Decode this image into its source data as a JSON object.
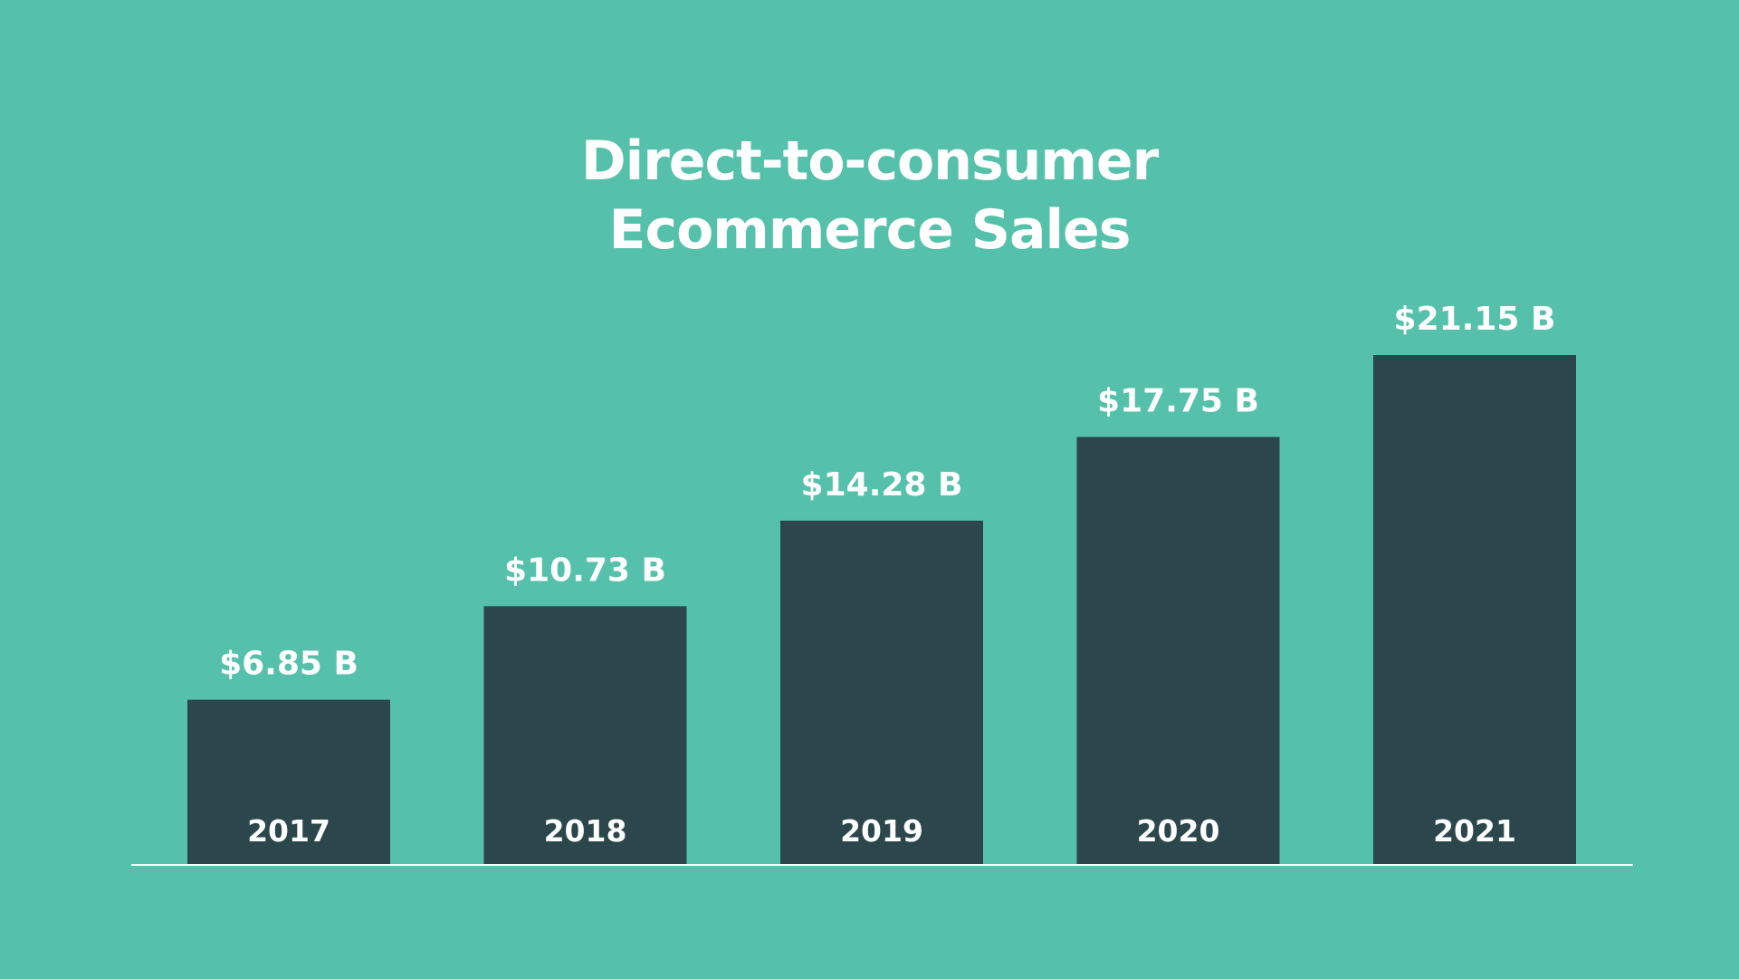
{
  "colors": {
    "background": "#55c1ab",
    "bar": "#2b474c",
    "text": "#ffffff",
    "axis_line": "#ffffff"
  },
  "chart_data": {
    "type": "bar",
    "title_lines": [
      "Direct-to-consumer",
      "Ecommerce Sales"
    ],
    "categories": [
      "2017",
      "2018",
      "2019",
      "2020",
      "2021"
    ],
    "values": [
      6.85,
      10.73,
      14.28,
      17.75,
      21.15
    ],
    "value_labels": [
      "$6.85 B",
      "$10.73 B",
      "$14.28 B",
      "$17.75 B",
      "$21.15 B"
    ],
    "xlabel": "",
    "ylabel": "",
    "ylim": [
      0,
      21.15
    ],
    "grid": false,
    "legend": "none",
    "category_label_position": "inside-bar-bottom"
  }
}
